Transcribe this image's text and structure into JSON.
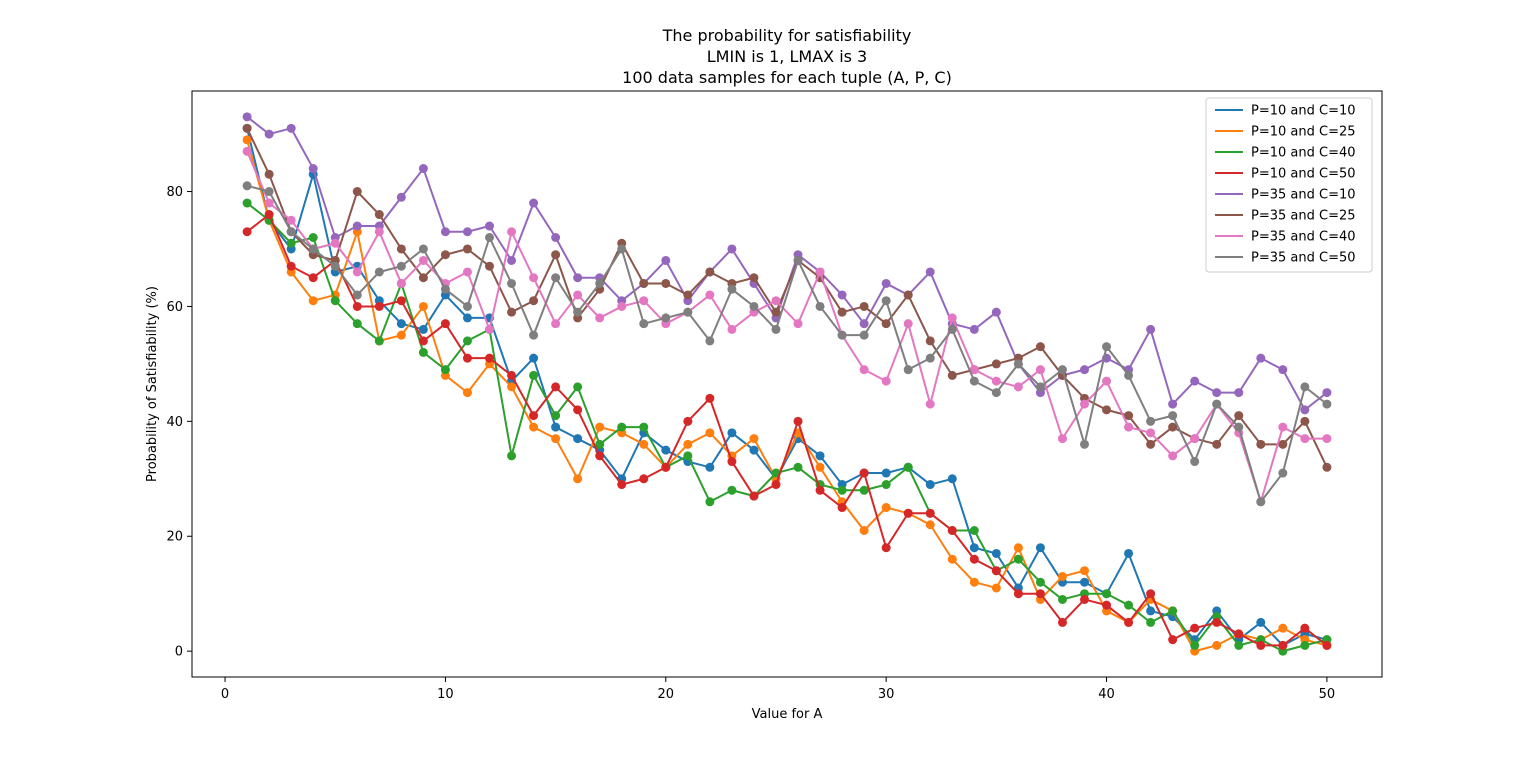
{
  "chart_data": {
    "type": "line",
    "title_lines": [
      "The probability for satisfiability",
      "LMIN is 1, LMAX is 3",
      "100 data samples for each tuple (A, P, C)"
    ],
    "xlabel": "Value for A",
    "ylabel": "Probability of Satisfiability (%)",
    "xlim": [
      -1.5,
      52.5
    ],
    "ylim": [
      -4.5,
      97.5
    ],
    "xticks": [
      0,
      10,
      20,
      30,
      40,
      50
    ],
    "yticks": [
      0,
      20,
      40,
      60,
      80
    ],
    "legend_position": "top-right",
    "x": [
      1,
      2,
      3,
      4,
      5,
      6,
      7,
      8,
      9,
      10,
      11,
      12,
      13,
      14,
      15,
      16,
      17,
      18,
      19,
      20,
      21,
      22,
      23,
      24,
      25,
      26,
      27,
      28,
      29,
      30,
      31,
      32,
      33,
      34,
      35,
      36,
      37,
      38,
      39,
      40,
      41,
      42,
      43,
      44,
      45,
      46,
      47,
      48,
      49,
      50
    ],
    "series": [
      {
        "name": "P=10 and C=10",
        "color": "#1f77b4",
        "values": [
          91,
          75,
          70,
          83,
          66,
          67,
          61,
          57,
          56,
          62,
          58,
          58,
          47,
          51,
          39,
          37,
          35,
          30,
          38,
          35,
          33,
          32,
          38,
          35,
          30,
          37,
          34,
          29,
          31,
          31,
          32,
          29,
          30,
          18,
          17,
          11,
          18,
          12,
          12,
          10,
          17,
          7,
          6,
          2,
          7,
          2,
          5,
          1,
          3,
          2
        ]
      },
      {
        "name": "P=10 and C=25",
        "color": "#ff7f0e",
        "values": [
          89,
          75,
          66,
          61,
          62,
          73,
          54,
          55,
          60,
          48,
          45,
          50,
          46,
          39,
          37,
          30,
          39,
          38,
          36,
          32,
          36,
          38,
          34,
          37,
          30,
          38,
          32,
          26,
          21,
          25,
          24,
          22,
          16,
          12,
          11,
          18,
          9,
          13,
          14,
          7,
          5,
          9,
          7,
          0,
          1,
          3,
          2,
          4,
          2,
          1
        ]
      },
      {
        "name": "P=10 and C=40",
        "color": "#2ca02c",
        "values": [
          78,
          75,
          71,
          72,
          61,
          57,
          54,
          64,
          52,
          49,
          54,
          56,
          34,
          48,
          41,
          46,
          36,
          39,
          39,
          32,
          34,
          26,
          28,
          27,
          31,
          32,
          29,
          28,
          28,
          29,
          32,
          24,
          21,
          21,
          14,
          16,
          12,
          9,
          10,
          10,
          8,
          5,
          7,
          1,
          6,
          1,
          2,
          0,
          1,
          2
        ]
      },
      {
        "name": "P=10 and C=50",
        "color": "#d62728",
        "values": [
          73,
          76,
          67,
          65,
          68,
          60,
          60,
          61,
          54,
          57,
          51,
          51,
          48,
          41,
          46,
          42,
          34,
          29,
          30,
          32,
          40,
          44,
          33,
          27,
          29,
          40,
          28,
          25,
          31,
          18,
          24,
          24,
          21,
          16,
          14,
          10,
          10,
          5,
          9,
          8,
          5,
          10,
          2,
          4,
          5,
          3,
          1,
          1,
          4,
          1
        ]
      },
      {
        "name": "P=35 and C=10",
        "color": "#9467bd",
        "values": [
          93,
          90,
          91,
          84,
          72,
          74,
          74,
          79,
          84,
          73,
          73,
          74,
          68,
          78,
          72,
          65,
          65,
          61,
          64,
          68,
          61,
          66,
          70,
          64,
          58,
          69,
          66,
          62,
          57,
          64,
          62,
          66,
          57,
          56,
          59,
          50,
          45,
          48,
          49,
          51,
          49,
          56,
          43,
          47,
          45,
          45,
          51,
          49,
          42,
          45
        ]
      },
      {
        "name": "P=35 and C=25",
        "color": "#8c564b",
        "values": [
          91,
          83,
          73,
          69,
          68,
          80,
          76,
          70,
          65,
          69,
          70,
          67,
          59,
          61,
          69,
          58,
          63,
          71,
          64,
          64,
          62,
          66,
          64,
          65,
          59,
          68,
          65,
          59,
          60,
          57,
          62,
          54,
          48,
          49,
          50,
          51,
          53,
          48,
          44,
          42,
          41,
          36,
          39,
          37,
          36,
          41,
          36,
          36,
          40,
          32
        ]
      },
      {
        "name": "P=35 and C=40",
        "color": "#e377c2",
        "values": [
          87,
          78,
          75,
          70,
          71,
          66,
          73,
          64,
          68,
          64,
          66,
          56,
          73,
          65,
          57,
          62,
          58,
          60,
          61,
          57,
          59,
          62,
          56,
          59,
          61,
          57,
          66,
          55,
          49,
          47,
          57,
          43,
          58,
          49,
          47,
          46,
          49,
          37,
          43,
          47,
          39,
          38,
          34,
          37,
          43,
          38,
          26,
          39,
          37,
          37
        ]
      },
      {
        "name": "P=35 and C=50",
        "color": "#7f7f7f",
        "values": [
          81,
          80,
          73,
          70,
          67,
          62,
          66,
          67,
          70,
          63,
          60,
          72,
          64,
          55,
          65,
          59,
          64,
          70,
          57,
          58,
          59,
          54,
          63,
          60,
          56,
          68,
          60,
          55,
          55,
          61,
          49,
          51,
          56,
          47,
          45,
          50,
          46,
          49,
          36,
          53,
          48,
          40,
          41,
          33,
          43,
          39,
          26,
          31,
          46,
          43
        ]
      }
    ]
  }
}
